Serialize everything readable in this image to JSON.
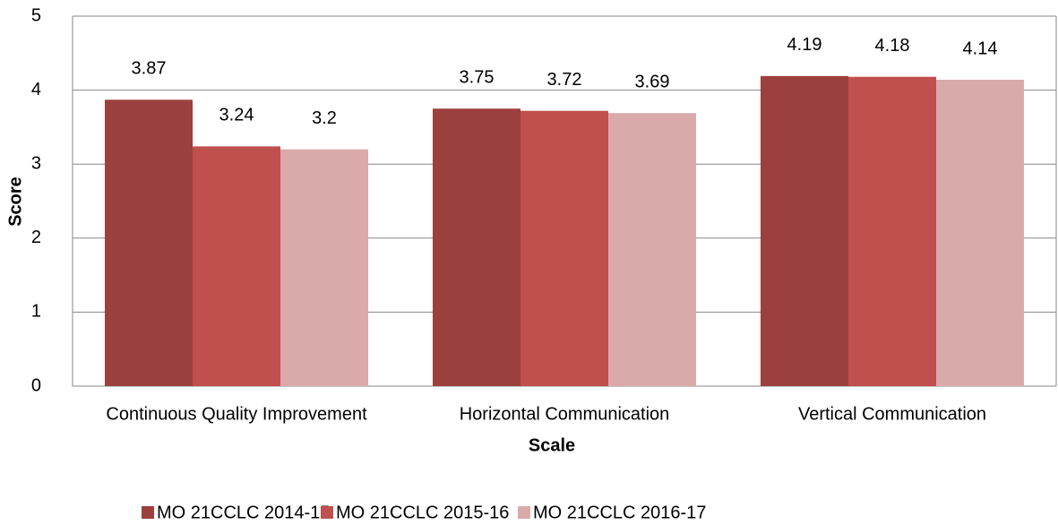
{
  "chart_data": {
    "type": "bar",
    "x_label": "Scale",
    "y_label": "Score",
    "categories": [
      "Continuous Quality Improvement",
      "Horizontal Communication",
      "Vertical Communication"
    ],
    "series": [
      {
        "name": "MO 21CCLC 2014-15",
        "color": "#9c403d",
        "values": [
          3.87,
          3.75,
          4.19
        ]
      },
      {
        "name": "MO 21CCLC 2015-16",
        "color": "#c0504d",
        "values": [
          3.24,
          3.72,
          4.18
        ]
      },
      {
        "name": "MO 21CCLC 2016-17",
        "color": "#d9aaa9",
        "values": [
          3.2,
          3.69,
          4.14
        ]
      }
    ],
    "ylim": [
      0,
      5
    ],
    "yticks": [
      0,
      1,
      2,
      3,
      4,
      5
    ],
    "grid": true,
    "legend": "bottom"
  }
}
